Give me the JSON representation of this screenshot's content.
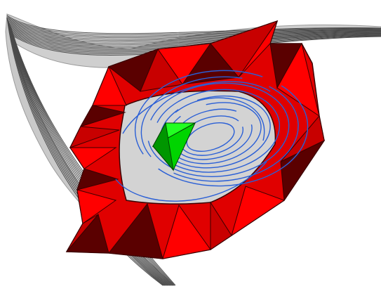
{
  "scene": {
    "background": "#ffffff",
    "colors": {
      "surface_fill": "#c9c9c9",
      "surface_line": "#4a4a4a",
      "wall_red": "#ff0000",
      "wall_mid": "#c80000",
      "wall_dark": "#5a0000",
      "wall_edge": "#3a0000",
      "stream_blue": "#2a5fd6",
      "solid_green": "#00ff00",
      "solid_green_dark": "#007a00"
    },
    "objects": [
      "grey-sheet-surface",
      "red-block-ring",
      "blue-streamlines",
      "green-tetrahedron"
    ]
  }
}
